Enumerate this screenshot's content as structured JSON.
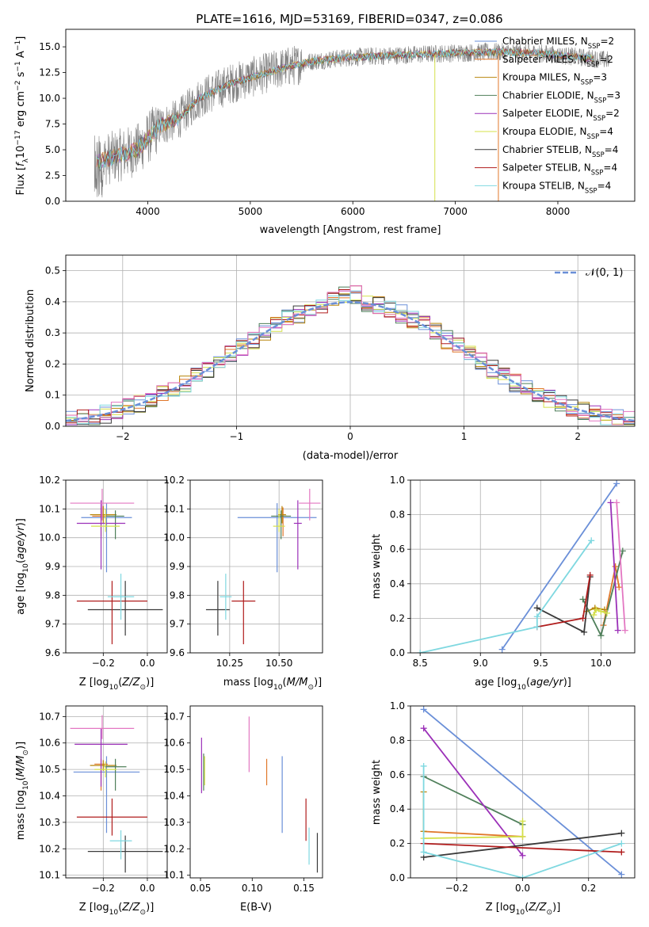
{
  "chart_data": [
    {
      "type": "line",
      "title": "PLATE=1616, MJD=53169, FIBERID=0347, z=0.086",
      "xlabel": "wavelength [Angstrom, rest frame]",
      "ylabel": "Flux [f_λ 10^-17 erg cm^-2 s^-1 A^-1]",
      "xlim": [
        3200,
        8750
      ],
      "ylim": [
        0,
        16.7
      ],
      "xticks": [
        "4000",
        "5000",
        "6000",
        "7000",
        "8000"
      ],
      "yticks": [
        "0.0",
        "2.5",
        "5.0",
        "7.5",
        "10.0",
        "12.5",
        "15.0"
      ],
      "grid": false,
      "legend": "top-right",
      "series": [
        {
          "name": "Chabrier MILES, N_SSP=2",
          "color": "#6a8fd8"
        },
        {
          "name": "Salpeter MILES, N_SSP=2",
          "color": "#e0772a"
        },
        {
          "name": "Kroupa MILES, N_SSP=3",
          "color": "#b8860b"
        },
        {
          "name": "Chabrier ELODIE, N_SSP=3",
          "color": "#4f7f5a"
        },
        {
          "name": "Salpeter ELODIE, N_SSP=2",
          "color": "#9b30b8"
        },
        {
          "name": "Kroupa ELODIE, N_SSP=4",
          "color": "#d4e04a"
        },
        {
          "name": "Chabrier STELIB, N_SSP=4",
          "color": "#3a3a3a"
        },
        {
          "name": "Salpeter STELIB, N_SSP=4",
          "color": "#b01c1c"
        },
        {
          "name": "Kroupa STELIB, N_SSP=4",
          "color": "#7fd8e0"
        }
      ],
      "continuum_points": [
        [
          3500,
          3.8
        ],
        [
          3900,
          5.0
        ],
        [
          4100,
          7.2
        ],
        [
          4300,
          8.0
        ],
        [
          4500,
          10.0
        ],
        [
          4800,
          11.4
        ],
        [
          5000,
          12.0
        ],
        [
          5300,
          12.9
        ],
        [
          5600,
          13.6
        ],
        [
          6000,
          14.0
        ],
        [
          6500,
          14.2
        ],
        [
          7000,
          14.4
        ],
        [
          7400,
          14.5
        ],
        [
          7800,
          14.4
        ],
        [
          8200,
          14.0
        ],
        [
          8500,
          13.7
        ]
      ]
    },
    {
      "type": "histogram",
      "xlabel": "(data-model)/error",
      "ylabel": "Normed distribution",
      "xlim": [
        -2.5,
        2.5
      ],
      "ylim": [
        0,
        0.55
      ],
      "xticks": [
        "−2",
        "−1",
        "0",
        "1",
        "2"
      ],
      "yticks": [
        "0.0",
        "0.1",
        "0.2",
        "0.3",
        "0.4",
        "0.5"
      ],
      "grid": true,
      "legend": "top-right",
      "reference_label": "𝒩(0, 1)",
      "bin_width": 0.1,
      "bins_from": -2.5
    },
    {
      "type": "scatter",
      "xlabel": "Z [log10(Z/Z⊙)]",
      "ylabel": "age [log10(age/yr)]",
      "xlim": [
        -0.37,
        0.09
      ],
      "ylim": [
        9.6,
        10.2
      ],
      "xticks": [
        "−0.2",
        "0.0"
      ],
      "yticks": [
        "9.6",
        "9.7",
        "9.8",
        "9.9",
        "10.0",
        "10.1",
        "10.2"
      ],
      "grid": true,
      "points": [
        {
          "x": -0.185,
          "y": 10.07,
          "xerr": 0.115,
          "yerr": [
            0.19,
            0.05
          ],
          "color": "#6a8fd8"
        },
        {
          "x": -0.21,
          "y": 10.075,
          "xerr": 0.04,
          "yerr": [
            0.07,
            0.03
          ],
          "color": "#e0772a"
        },
        {
          "x": -0.2,
          "y": 10.08,
          "xerr": 0.06,
          "yerr": [
            0.03,
            0.03
          ],
          "color": "#b8860b"
        },
        {
          "x": -0.145,
          "y": 10.075,
          "xerr": 0.04,
          "yerr": [
            0.08,
            0.02
          ],
          "color": "#4f7f5a"
        },
        {
          "x": -0.21,
          "y": 10.05,
          "xerr": 0.11,
          "yerr": [
            0.16,
            0.08
          ],
          "color": "#9b30b8"
        },
        {
          "x": -0.19,
          "y": 10.04,
          "xerr": 0.065,
          "yerr": [
            0.02,
            0.06
          ],
          "color": "#d4e04a"
        },
        {
          "x": -0.1,
          "y": 9.75,
          "xerr": 0.17,
          "yerr": [
            0.09,
            0.1
          ],
          "color": "#3a3a3a"
        },
        {
          "x": -0.16,
          "y": 9.78,
          "xerr": 0.16,
          "yerr": [
            0.15,
            0.07
          ],
          "color": "#b01c1c"
        },
        {
          "x": -0.12,
          "y": 9.795,
          "xerr": 0.06,
          "yerr": [
            0.08,
            0.08
          ],
          "color": "#7fd8e0"
        },
        {
          "x": -0.205,
          "y": 10.12,
          "xerr": 0.145,
          "yerr": [
            0.06,
            0.05
          ],
          "color": "#e377c2"
        }
      ]
    },
    {
      "type": "scatter",
      "xlabel": "mass [log10(M/M⊙)]",
      "xlim": [
        10.05,
        10.72
      ],
      "ylim": [
        9.6,
        10.2
      ],
      "xticks": [
        "10.25",
        "10.50"
      ],
      "yticks": [
        "9.6",
        "9.7",
        "9.8",
        "9.9",
        "10.0",
        "10.1",
        "10.2"
      ],
      "grid": true,
      "points": [
        {
          "x": 10.49,
          "y": 10.07,
          "xerr": 0.2,
          "yerr": [
            0.19,
            0.05
          ],
          "color": "#6a8fd8"
        },
        {
          "x": 10.52,
          "y": 10.075,
          "xerr": 0.02,
          "yerr": [
            0.07,
            0.03
          ],
          "color": "#e0772a"
        },
        {
          "x": 10.515,
          "y": 10.08,
          "xerr": 0.02,
          "yerr": [
            0.03,
            0.03
          ],
          "color": "#b8860b"
        },
        {
          "x": 10.51,
          "y": 10.075,
          "xerr": 0.05,
          "yerr": [
            0.08,
            0.02
          ],
          "color": "#4f7f5a"
        },
        {
          "x": 10.595,
          "y": 10.05,
          "xerr": 0.02,
          "yerr": [
            0.16,
            0.08
          ],
          "color": "#9b30b8"
        },
        {
          "x": 10.5,
          "y": 10.04,
          "xerr": 0.03,
          "yerr": [
            0.02,
            0.06
          ],
          "color": "#d4e04a"
        },
        {
          "x": 10.19,
          "y": 9.75,
          "xerr": 0.06,
          "yerr": [
            0.09,
            0.1
          ],
          "color": "#3a3a3a"
        },
        {
          "x": 10.32,
          "y": 9.78,
          "xerr": 0.06,
          "yerr": [
            0.15,
            0.07
          ],
          "color": "#b01c1c"
        },
        {
          "x": 10.23,
          "y": 9.795,
          "xerr": 0.03,
          "yerr": [
            0.08,
            0.08
          ],
          "color": "#7fd8e0"
        },
        {
          "x": 10.655,
          "y": 10.12,
          "xerr": 0.055,
          "yerr": [
            0.06,
            0.05
          ],
          "color": "#e377c2"
        }
      ]
    },
    {
      "type": "line",
      "xlabel": "age [log10(age/yr)]",
      "ylabel": "mass weight",
      "xlim": [
        8.42,
        10.28
      ],
      "ylim": [
        0,
        1.0
      ],
      "xticks": [
        "8.5",
        "9.0",
        "9.5",
        "10.0"
      ],
      "yticks": [
        "0.0",
        "0.2",
        "0.4",
        "0.6",
        "0.8",
        "1.0"
      ],
      "grid": true,
      "series": [
        {
          "color": "#6a8fd8",
          "points": [
            [
              9.18,
              0.02
            ],
            [
              10.13,
              0.98
            ]
          ]
        },
        {
          "color": "#e0772a",
          "points": [
            [
              10.02,
              0.16
            ],
            [
              10.12,
              0.5
            ],
            [
              10.15,
              0.38
            ]
          ]
        },
        {
          "color": "#b8860b",
          "points": [
            [
              9.88,
              0.24
            ],
            [
              9.95,
              0.26
            ],
            [
              10.03,
              0.25
            ]
          ]
        },
        {
          "color": "#4f7f5a",
          "points": [
            [
              9.85,
              0.31
            ],
            [
              10.0,
              0.1
            ],
            [
              10.18,
              0.59
            ]
          ]
        },
        {
          "color": "#9b30b8",
          "points": [
            [
              10.08,
              0.87
            ],
            [
              10.14,
              0.13
            ]
          ]
        },
        {
          "color": "#d4e04a",
          "points": [
            [
              9.94,
              0.22
            ],
            [
              9.96,
              0.25
            ],
            [
              10.0,
              0.24
            ],
            [
              10.05,
              0.23
            ]
          ]
        },
        {
          "color": "#3a3a3a",
          "points": [
            [
              9.47,
              0.26
            ],
            [
              9.86,
              0.12
            ],
            [
              9.91,
              0.44
            ]
          ]
        },
        {
          "color": "#b01c1c",
          "points": [
            [
              9.47,
              0.15
            ],
            [
              9.85,
              0.2
            ],
            [
              9.91,
              0.45
            ]
          ]
        },
        {
          "color": "#7fd8e0",
          "points": [
            [
              8.5,
              0.0
            ],
            [
              9.47,
              0.15
            ],
            [
              9.47,
              0.21
            ],
            [
              9.92,
              0.65
            ]
          ]
        },
        {
          "color": "#e377c2",
          "points": [
            [
              10.13,
              0.87
            ],
            [
              10.2,
              0.13
            ]
          ]
        }
      ]
    },
    {
      "type": "scatter",
      "xlabel": "Z [log10(Z/Z⊙)]",
      "ylabel": "mass [log10(M/M⊙)]",
      "xlim": [
        -0.37,
        0.09
      ],
      "ylim": [
        10.09,
        10.74
      ],
      "xticks": [
        "−0.2",
        "0.0"
      ],
      "yticks": [
        "10.1",
        "10.2",
        "10.3",
        "10.4",
        "10.5",
        "10.6",
        "10.7"
      ],
      "grid": true,
      "points": [
        {
          "x": -0.185,
          "y": 10.49,
          "xerr": 0.15,
          "yerr": [
            0.23,
            0.06
          ],
          "color": "#6a8fd8"
        },
        {
          "x": -0.21,
          "y": 10.52,
          "xerr": 0.03,
          "yerr": [
            0.1,
            0.02
          ],
          "color": "#e0772a"
        },
        {
          "x": -0.2,
          "y": 10.515,
          "xerr": 0.06,
          "yerr": [
            0.02,
            0.02
          ],
          "color": "#b8860b"
        },
        {
          "x": -0.145,
          "y": 10.51,
          "xerr": 0.05,
          "yerr": [
            0.09,
            0.03
          ],
          "color": "#4f7f5a"
        },
        {
          "x": -0.21,
          "y": 10.595,
          "xerr": 0.12,
          "yerr": [
            0.16,
            0.06
          ],
          "color": "#9b30b8"
        },
        {
          "x": -0.19,
          "y": 10.5,
          "xerr": 0.05,
          "yerr": [
            0.03,
            0.03
          ],
          "color": "#d4e04a"
        },
        {
          "x": -0.1,
          "y": 10.19,
          "xerr": 0.17,
          "yerr": [
            0.08,
            0.06
          ],
          "color": "#3a3a3a"
        },
        {
          "x": -0.16,
          "y": 10.32,
          "xerr": 0.16,
          "yerr": [
            0.07,
            0.07
          ],
          "color": "#b01c1c"
        },
        {
          "x": -0.12,
          "y": 10.23,
          "xerr": 0.05,
          "yerr": [
            0.07,
            0.04
          ],
          "color": "#7fd8e0"
        },
        {
          "x": -0.205,
          "y": 10.655,
          "xerr": 0.145,
          "yerr": [
            0.04,
            0.05
          ],
          "color": "#e377c2"
        }
      ]
    },
    {
      "type": "errorbar",
      "xlabel": "E(B-V)",
      "xlim": [
        0.04,
        0.168
      ],
      "ylim": [
        10.09,
        10.74
      ],
      "xticks": [
        "0.05",
        "0.10",
        "0.15"
      ],
      "yticks": [
        "10.1",
        "10.2",
        "10.3",
        "10.4",
        "10.5",
        "10.6",
        "10.7"
      ],
      "grid": false,
      "segments": [
        {
          "x": 0.051,
          "y0": 10.41,
          "y1": 10.62,
          "color": "#9b30b8"
        },
        {
          "x": 0.053,
          "y0": 10.42,
          "y1": 10.56,
          "color": "#4f7f5a"
        },
        {
          "x": 0.054,
          "y0": 10.44,
          "y1": 10.55,
          "color": "#d4e04a"
        },
        {
          "x": 0.097,
          "y0": 10.49,
          "y1": 10.7,
          "color": "#e377c2"
        },
        {
          "x": 0.114,
          "y0": 10.44,
          "y1": 10.54,
          "color": "#e0772a"
        },
        {
          "x": 0.129,
          "y0": 10.26,
          "y1": 10.55,
          "color": "#6a8fd8"
        },
        {
          "x": 0.152,
          "y0": 10.23,
          "y1": 10.39,
          "color": "#b01c1c"
        },
        {
          "x": 0.155,
          "y0": 10.14,
          "y1": 10.28,
          "color": "#7fd8e0"
        },
        {
          "x": 0.163,
          "y0": 10.11,
          "y1": 10.26,
          "color": "#3a3a3a"
        }
      ]
    },
    {
      "type": "line",
      "xlabel": "Z [log10(Z/Z⊙)]",
      "ylabel": "mass weight",
      "xlim": [
        -0.34,
        0.34
      ],
      "ylim": [
        0,
        1.0
      ],
      "xticks": [
        "−0.2",
        "0.0",
        "0.2"
      ],
      "yticks": [
        "0.0",
        "0.2",
        "0.4",
        "0.6",
        "0.8",
        "1.0"
      ],
      "grid": true,
      "series": [
        {
          "color": "#6a8fd8",
          "points": [
            [
              -0.3,
              0.98
            ],
            [
              0.3,
              0.02
            ]
          ]
        },
        {
          "color": "#e0772a",
          "points": [
            [
              -0.3,
              0.27
            ],
            [
              0.0,
              0.24
            ]
          ]
        },
        {
          "color": "#b8860b",
          "points": [
            [
              -0.3,
              0.5
            ],
            [
              -0.3,
              0.27
            ]
          ]
        },
        {
          "color": "#4f7f5a",
          "points": [
            [
              -0.3,
              0.59
            ],
            [
              0.0,
              0.31
            ]
          ]
        },
        {
          "color": "#9b30b8",
          "points": [
            [
              -0.3,
              0.87
            ],
            [
              0.0,
              0.13
            ]
          ]
        },
        {
          "color": "#d4e04a",
          "points": [
            [
              -0.3,
              0.23
            ],
            [
              0.0,
              0.24
            ],
            [
              0.0,
              0.33
            ]
          ]
        },
        {
          "color": "#3a3a3a",
          "points": [
            [
              -0.3,
              0.12
            ],
            [
              0.3,
              0.26
            ]
          ]
        },
        {
          "color": "#b01c1c",
          "points": [
            [
              -0.3,
              0.2
            ],
            [
              0.3,
              0.15
            ]
          ]
        },
        {
          "color": "#7fd8e0",
          "points": [
            [
              -0.3,
              0.65
            ],
            [
              -0.3,
              0.15
            ],
            [
              0.0,
              0.0
            ],
            [
              0.3,
              0.2
            ]
          ]
        }
      ]
    }
  ]
}
